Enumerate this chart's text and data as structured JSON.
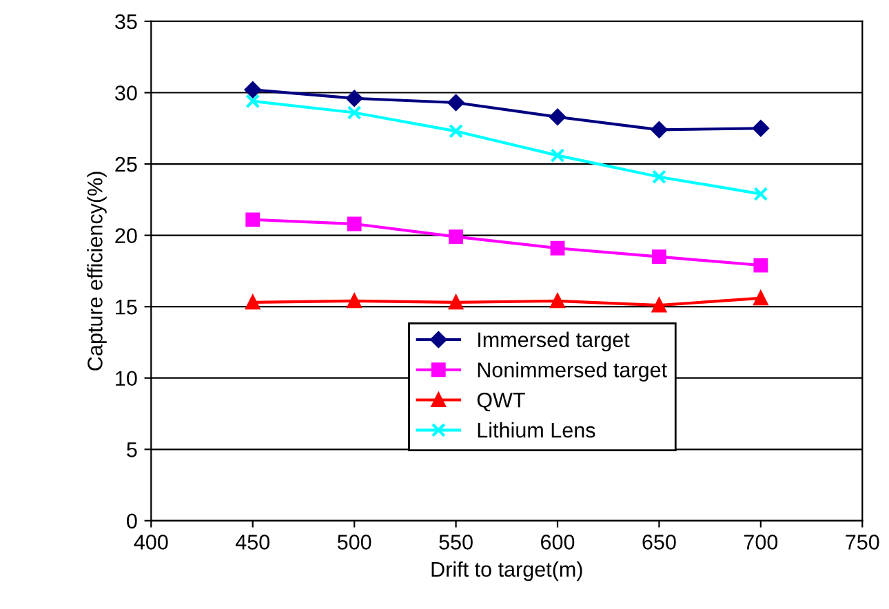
{
  "chart_data": {
    "type": "line",
    "xlabel": "Drift to target(m)",
    "ylabel": "Capture efficiency(%)",
    "x": [
      450,
      500,
      550,
      600,
      650,
      700
    ],
    "series": [
      {
        "name": "Immersed target",
        "color": "#000080",
        "marker": "diamond",
        "values": [
          30.2,
          29.6,
          29.3,
          28.3,
          27.4,
          27.5
        ]
      },
      {
        "name": "Nonimmersed target",
        "color": "#ff00ff",
        "marker": "square",
        "values": [
          21.1,
          20.8,
          19.9,
          19.1,
          18.5,
          17.9
        ]
      },
      {
        "name": "QWT",
        "color": "#ff0000",
        "marker": "triangle",
        "values": [
          15.3,
          15.4,
          15.3,
          15.4,
          15.1,
          15.6
        ]
      },
      {
        "name": "Lithium Lens",
        "color": "#00ffff",
        "marker": "cross",
        "values": [
          29.4,
          28.6,
          27.3,
          25.6,
          24.1,
          22.9
        ]
      }
    ],
    "xlim": [
      400,
      750
    ],
    "xticks": [
      400,
      450,
      500,
      550,
      600,
      650,
      700,
      750
    ],
    "ylim": [
      0,
      35
    ],
    "yticks": [
      0,
      5,
      10,
      15,
      20,
      25,
      30,
      35
    ],
    "grid": "y",
    "legend": "bottom",
    "line_style": "solid"
  }
}
